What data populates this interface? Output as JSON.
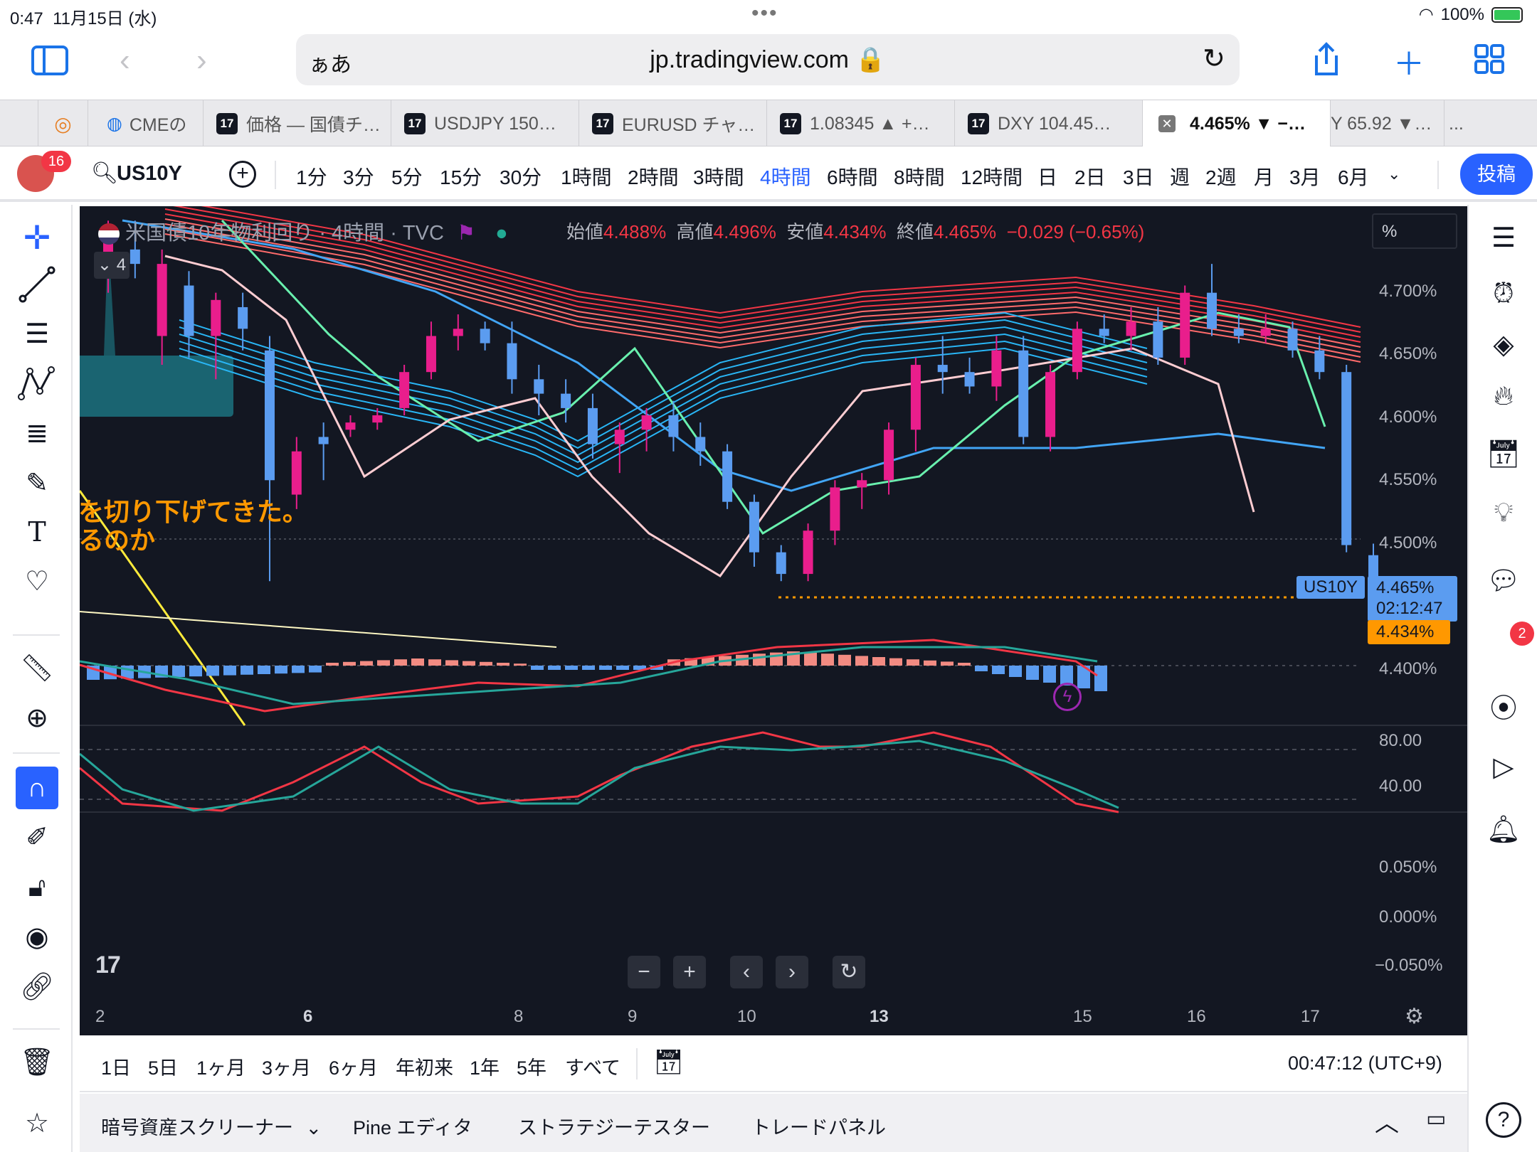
{
  "status_bar": {
    "time": "0:47",
    "date": "11月15日 (水)",
    "battery": "100%"
  },
  "safari": {
    "aa": "ぁあ",
    "url": "jp.tradingview.com"
  },
  "tabs": [
    {
      "label": "CMEの"
    },
    {
      "label": "価格 — 国債チ…"
    },
    {
      "label": "USDJPY 150…"
    },
    {
      "label": "EURUSD チャ…"
    },
    {
      "label": "1.08345 ▲ +…"
    },
    {
      "label": "DXY 104.45…"
    },
    {
      "label": "4.465% ▼ −…"
    },
    {
      "label": "Y 65.92 ▼…"
    }
  ],
  "header": {
    "avatar_badge": "16",
    "symbol": "US10Y",
    "timeframes": [
      "1分",
      "3分",
      "5分",
      "15分",
      "30分",
      "1時間",
      "2時間",
      "3時間",
      "4時間",
      "6時間",
      "8時間",
      "12時間",
      "日",
      "2日",
      "3日",
      "週",
      "2週",
      "月",
      "3月",
      "6月"
    ],
    "active_timeframe": "4時間",
    "post_button": "投稿"
  },
  "legend": {
    "title": "米国債10年物利回り · 4時間 · TVC",
    "collapse_count": "4",
    "open_label": "始値",
    "open": "4.488%",
    "high_label": "高値",
    "high": "4.496%",
    "low_label": "安値",
    "low": "4.434%",
    "close_label": "終値",
    "close": "4.465%",
    "change": "−0.029 (−0.65%)"
  },
  "price_axis": {
    "unit_button": "%",
    "labels": [
      "4.700%",
      "4.650%",
      "4.600%",
      "4.550%",
      "4.500%",
      "4.400%"
    ],
    "current_symbol_tag": "US10Y",
    "current_price": "4.465%",
    "countdown": "02:12:47",
    "low_marker": "4.434%"
  },
  "note": {
    "line1": "を切り下げてきた。",
    "line2": "るのか"
  },
  "stoch_axis": [
    "80.00",
    "40.00"
  ],
  "macd_axis": [
    "0.050%",
    "0.000%",
    "−0.050%"
  ],
  "time_axis": [
    "2",
    "6",
    "8",
    "9",
    "10",
    "13",
    "15",
    "16",
    "17"
  ],
  "chart_data": {
    "type": "candlestick",
    "title": "米国債10年物利回り · 4時間 · TVC",
    "ylim": [
      4.37,
      4.73
    ],
    "x_labels": [
      "2",
      "6",
      "8",
      "9",
      "10",
      "13",
      "15",
      "16",
      "17"
    ],
    "candles": [
      {
        "o": 4.69,
        "h": 4.72,
        "l": 4.67,
        "c": 4.715
      },
      {
        "o": 4.7,
        "h": 4.72,
        "l": 4.68,
        "c": 4.69
      },
      {
        "o": 4.64,
        "h": 4.7,
        "l": 4.62,
        "c": 4.69
      },
      {
        "o": 4.675,
        "h": 4.685,
        "l": 4.625,
        "c": 4.64
      },
      {
        "o": 4.64,
        "h": 4.67,
        "l": 4.61,
        "c": 4.665
      },
      {
        "o": 4.66,
        "h": 4.67,
        "l": 4.63,
        "c": 4.645
      },
      {
        "o": 4.63,
        "h": 4.64,
        "l": 4.47,
        "c": 4.54
      },
      {
        "o": 4.53,
        "h": 4.57,
        "l": 4.52,
        "c": 4.56
      },
      {
        "o": 4.57,
        "h": 4.58,
        "l": 4.54,
        "c": 4.565
      },
      {
        "o": 4.575,
        "h": 4.585,
        "l": 4.57,
        "c": 4.58
      },
      {
        "o": 4.58,
        "h": 4.59,
        "l": 4.575,
        "c": 4.585
      },
      {
        "o": 4.59,
        "h": 4.62,
        "l": 4.585,
        "c": 4.615
      },
      {
        "o": 4.615,
        "h": 4.65,
        "l": 4.61,
        "c": 4.64
      },
      {
        "o": 4.64,
        "h": 4.655,
        "l": 4.63,
        "c": 4.645
      },
      {
        "o": 4.645,
        "h": 4.65,
        "l": 4.63,
        "c": 4.635
      },
      {
        "o": 4.635,
        "h": 4.65,
        "l": 4.6,
        "c": 4.61
      },
      {
        "o": 4.61,
        "h": 4.62,
        "l": 4.585,
        "c": 4.6
      },
      {
        "o": 4.6,
        "h": 4.61,
        "l": 4.58,
        "c": 4.59
      },
      {
        "o": 4.59,
        "h": 4.6,
        "l": 4.555,
        "c": 4.565
      },
      {
        "o": 4.565,
        "h": 4.58,
        "l": 4.545,
        "c": 4.575
      },
      {
        "o": 4.575,
        "h": 4.59,
        "l": 4.56,
        "c": 4.585
      },
      {
        "o": 4.585,
        "h": 4.595,
        "l": 4.56,
        "c": 4.57
      },
      {
        "o": 4.57,
        "h": 4.58,
        "l": 4.55,
        "c": 4.56
      },
      {
        "o": 4.56,
        "h": 4.565,
        "l": 4.52,
        "c": 4.525
      },
      {
        "o": 4.525,
        "h": 4.53,
        "l": 4.48,
        "c": 4.49
      },
      {
        "o": 4.49,
        "h": 4.495,
        "l": 4.47,
        "c": 4.475
      },
      {
        "o": 4.475,
        "h": 4.51,
        "l": 4.47,
        "c": 4.505
      },
      {
        "o": 4.505,
        "h": 4.54,
        "l": 4.495,
        "c": 4.535
      },
      {
        "o": 4.535,
        "h": 4.545,
        "l": 4.52,
        "c": 4.54
      },
      {
        "o": 4.54,
        "h": 4.58,
        "l": 4.53,
        "c": 4.575
      },
      {
        "o": 4.575,
        "h": 4.625,
        "l": 4.56,
        "c": 4.62
      },
      {
        "o": 4.62,
        "h": 4.64,
        "l": 4.6,
        "c": 4.615
      },
      {
        "o": 4.615,
        "h": 4.625,
        "l": 4.6,
        "c": 4.605
      },
      {
        "o": 4.605,
        "h": 4.64,
        "l": 4.595,
        "c": 4.63
      },
      {
        "o": 4.63,
        "h": 4.64,
        "l": 4.565,
        "c": 4.57
      },
      {
        "o": 4.57,
        "h": 4.62,
        "l": 4.56,
        "c": 4.615
      },
      {
        "o": 4.615,
        "h": 4.65,
        "l": 4.61,
        "c": 4.645
      },
      {
        "o": 4.645,
        "h": 4.655,
        "l": 4.635,
        "c": 4.64
      },
      {
        "o": 4.64,
        "h": 4.66,
        "l": 4.63,
        "c": 4.65
      },
      {
        "o": 4.65,
        "h": 4.66,
        "l": 4.62,
        "c": 4.625
      },
      {
        "o": 4.625,
        "h": 4.675,
        "l": 4.62,
        "c": 4.67
      },
      {
        "o": 4.67,
        "h": 4.69,
        "l": 4.64,
        "c": 4.645
      },
      {
        "o": 4.645,
        "h": 4.655,
        "l": 4.635,
        "c": 4.64
      },
      {
        "o": 4.64,
        "h": 4.655,
        "l": 4.635,
        "c": 4.645
      },
      {
        "o": 4.645,
        "h": 4.65,
        "l": 4.625,
        "c": 4.63
      },
      {
        "o": 4.63,
        "h": 4.64,
        "l": 4.61,
        "c": 4.615
      },
      {
        "o": 4.615,
        "h": 4.62,
        "l": 4.49,
        "c": 4.495
      },
      {
        "o": 4.488,
        "h": 4.496,
        "l": 4.434,
        "c": 4.465
      }
    ]
  },
  "chart_controls": {
    "zoom_out": "−",
    "zoom_in": "+",
    "prev": "‹",
    "next": "›",
    "reset": "↻"
  },
  "range_bar": {
    "ranges": [
      "1日",
      "5日",
      "1ヶ月",
      "3ヶ月",
      "6ヶ月",
      "年初来",
      "1年",
      "5年",
      "すべて"
    ],
    "clock": "00:47:12 (UTC+9)"
  },
  "panel_bar": {
    "items": [
      "暗号資産スクリーナー",
      "Pine エディタ",
      "ストラテジーテスター",
      "トレードパネル"
    ]
  },
  "right_toolbar": {
    "chat_badge": "2"
  },
  "colors": {
    "up": "#e91e8c",
    "down": "#5b9cf0",
    "accent": "#2962ff",
    "bg": "#131722"
  }
}
